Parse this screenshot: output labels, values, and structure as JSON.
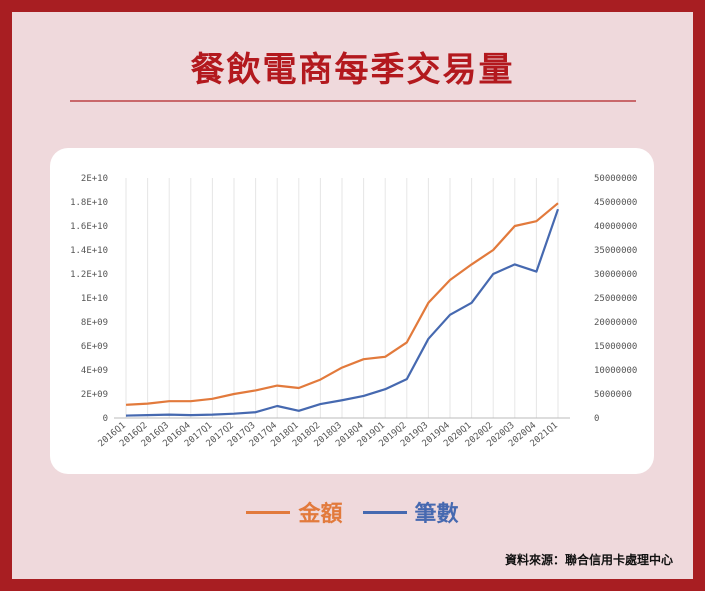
{
  "header": {
    "title": "餐飲電商每季交易量"
  },
  "source": "資料來源：聯合信用卡處理中心",
  "colors": {
    "amount": "#e27a3c",
    "count": "#4669b0",
    "border": "#a81e22",
    "title": "#b3191e"
  },
  "chart_data": {
    "type": "line",
    "title": "",
    "categories": [
      "2016Q1",
      "2016Q2",
      "2016Q3",
      "2016Q4",
      "2017Q1",
      "2017Q2",
      "2017Q3",
      "2017Q4",
      "2018Q1",
      "2018Q2",
      "2018Q3",
      "2018Q4",
      "2019Q1",
      "2019Q2",
      "2019Q3",
      "2019Q4",
      "2020Q1",
      "2020Q2",
      "2020Q3",
      "2020Q4",
      "2021Q1"
    ],
    "left_axis": {
      "ticks": [
        "0",
        "2E+09",
        "4E+09",
        "6E+09",
        "8E+09",
        "1E+10",
        "1.2E+10",
        "1.4E+10",
        "1.6E+10",
        "1.8E+10",
        "2E+10"
      ],
      "ylim": [
        0,
        20000000000
      ]
    },
    "right_axis": {
      "ticks": [
        "0",
        "5000000",
        "10000000",
        "15000000",
        "20000000",
        "25000000",
        "30000000",
        "35000000",
        "40000000",
        "45000000",
        "50000000"
      ],
      "ylim": [
        0,
        50000000
      ]
    },
    "series": [
      {
        "name": "金額",
        "axis": "left",
        "values": [
          1100000000,
          1200000000,
          1400000000,
          1400000000,
          1600000000,
          2000000000,
          2300000000,
          2700000000,
          2500000000,
          3200000000,
          4200000000,
          4900000000,
          5100000000,
          6300000000,
          9600000000,
          11500000000,
          12800000000,
          14000000000,
          16000000000,
          16400000000,
          17900000000
        ]
      },
      {
        "name": "筆數",
        "axis": "right",
        "values": [
          500000,
          600000,
          700000,
          600000,
          700000,
          900000,
          1200000,
          2500000,
          1500000,
          2900000,
          3700000,
          4600000,
          6000000,
          8100000,
          16500000,
          21500000,
          24000000,
          30000000,
          32000000,
          30500000,
          43500000
        ]
      }
    ],
    "grid": true,
    "legend": "bottom-center"
  }
}
